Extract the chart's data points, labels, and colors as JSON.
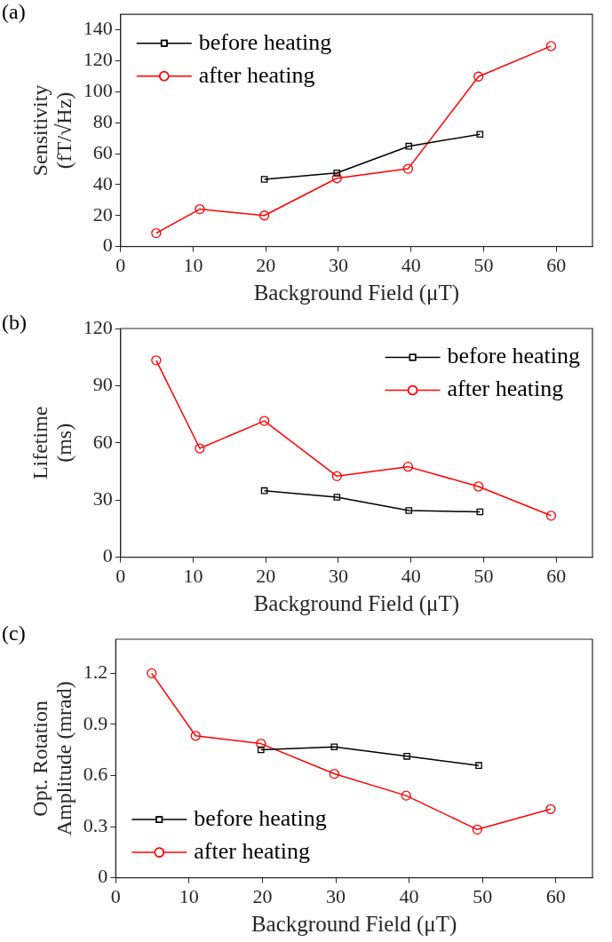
{
  "chart_data": [
    {
      "type": "line",
      "title": "(a)",
      "xlabel": "Background Field (μT)",
      "ylabel": "Sensitivity\n(fT/√Hz)",
      "xlim": [
        0,
        65
      ],
      "xticks": [
        0,
        10,
        20,
        30,
        40,
        50,
        60
      ],
      "ylim": [
        0,
        150
      ],
      "yticks": [
        0,
        20,
        40,
        60,
        80,
        100,
        120,
        140
      ],
      "legend": "top left",
      "grid": false,
      "line_style": "solid",
      "series": [
        {
          "name": "before heating",
          "color": "#000000",
          "marker": "square",
          "x": [
            19.8,
            29.8,
            39.7,
            49.5
          ],
          "values": [
            43.4,
            47.5,
            64.8,
            72.5
          ]
        },
        {
          "name": "after heating",
          "color": "#ff0000",
          "marker": "circle",
          "x": [
            4.9,
            10.9,
            19.8,
            29.8,
            39.6,
            49.3,
            59.3
          ],
          "values": [
            8.6,
            24.1,
            20,
            44.1,
            50.2,
            109.8,
            129.5
          ]
        }
      ]
    },
    {
      "type": "line",
      "title": "(b)",
      "xlabel": "Background Field (μT)",
      "ylabel": "Lifetime\n(ms)",
      "xlim": [
        0,
        65
      ],
      "xticks": [
        0,
        10,
        20,
        30,
        40,
        50,
        60
      ],
      "ylim": [
        0,
        120
      ],
      "yticks": [
        0,
        30,
        60,
        90,
        120
      ],
      "legend": "top right",
      "grid": false,
      "line_style": "solid",
      "series": [
        {
          "name": "before heating",
          "color": "#000000",
          "marker": "square",
          "x": [
            19.8,
            29.8,
            39.7,
            49.5
          ],
          "values": [
            34.9,
            31.5,
            24.5,
            23.8
          ]
        },
        {
          "name": "after heating",
          "color": "#ff0000",
          "marker": "circle",
          "x": [
            4.9,
            10.9,
            19.8,
            29.8,
            39.6,
            49.3,
            59.3
          ],
          "values": [
            103.3,
            57.1,
            71.5,
            42.5,
            47.5,
            37.1,
            21.8
          ]
        }
      ]
    },
    {
      "type": "line",
      "title": "(c)",
      "xlabel": "Background Field (μT)",
      "ylabel": "Opt. Rotation\nAmplitude (mrad)",
      "xlim": [
        0,
        65
      ],
      "xticks": [
        0,
        10,
        20,
        30,
        40,
        50,
        60
      ],
      "ylim": [
        0,
        1.4
      ],
      "yticks": [
        0,
        0.3,
        0.6,
        0.9,
        1.2
      ],
      "legend": "bottom left",
      "grid": false,
      "line_style": "solid",
      "series": [
        {
          "name": "before heating",
          "color": "#000000",
          "marker": "square",
          "x": [
            19.8,
            29.8,
            39.7,
            49.5
          ],
          "values": [
            0.751,
            0.768,
            0.713,
            0.659
          ]
        },
        {
          "name": "after heating",
          "color": "#ff0000",
          "marker": "circle",
          "x": [
            4.9,
            10.9,
            19.8,
            29.8,
            39.6,
            49.3,
            59.3
          ],
          "values": [
            1.2,
            0.833,
            0.787,
            0.61,
            0.482,
            0.283,
            0.403
          ]
        }
      ]
    }
  ]
}
